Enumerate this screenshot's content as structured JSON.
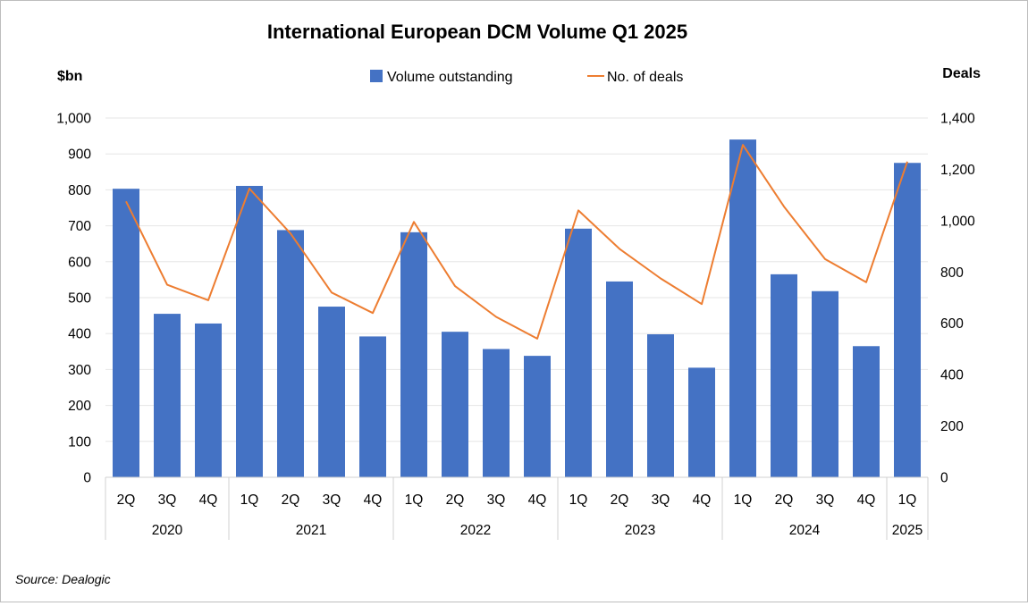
{
  "chart_data": {
    "type": "bar+line",
    "title": "International European DCM Volume Q1 2025",
    "ylabel_left": "$bn",
    "ylabel_right": "Deals",
    "ylim_left": [
      0,
      1000
    ],
    "ylim_right": [
      0,
      1400
    ],
    "yticks_left": [
      "0",
      "100",
      "200",
      "300",
      "400",
      "500",
      "600",
      "700",
      "800",
      "900",
      "1,000"
    ],
    "yticks_right": [
      "0",
      "200",
      "400",
      "600",
      "800",
      "1,000",
      "1,200",
      "1,400"
    ],
    "gridlines": true,
    "legend_position": "top-center",
    "categories": [
      "2Q",
      "3Q",
      "4Q",
      "1Q",
      "2Q",
      "3Q",
      "4Q",
      "1Q",
      "2Q",
      "3Q",
      "4Q",
      "1Q",
      "2Q",
      "3Q",
      "4Q",
      "1Q",
      "2Q",
      "3Q",
      "4Q",
      "1Q"
    ],
    "year_groups": [
      {
        "label": "2020",
        "count": 3
      },
      {
        "label": "2021",
        "count": 4
      },
      {
        "label": "2022",
        "count": 4
      },
      {
        "label": "2023",
        "count": 4
      },
      {
        "label": "2024",
        "count": 4
      },
      {
        "label": "2025",
        "count": 1
      }
    ],
    "series": [
      {
        "name": "Volume outstanding",
        "type": "bar",
        "axis": "left",
        "color": "#4472C4",
        "values": [
          803,
          455,
          428,
          811,
          688,
          475,
          392,
          682,
          405,
          357,
          338,
          692,
          545,
          398,
          305,
          940,
          565,
          518,
          365,
          875
        ]
      },
      {
        "name": "No. of deals",
        "type": "line",
        "axis": "right",
        "color": "#ED7D31",
        "values": [
          1075,
          750,
          690,
          1125,
          950,
          720,
          640,
          995,
          745,
          625,
          540,
          1040,
          890,
          775,
          675,
          1295,
          1055,
          850,
          760,
          1230
        ]
      }
    ]
  },
  "source": "Source: Dealogic"
}
